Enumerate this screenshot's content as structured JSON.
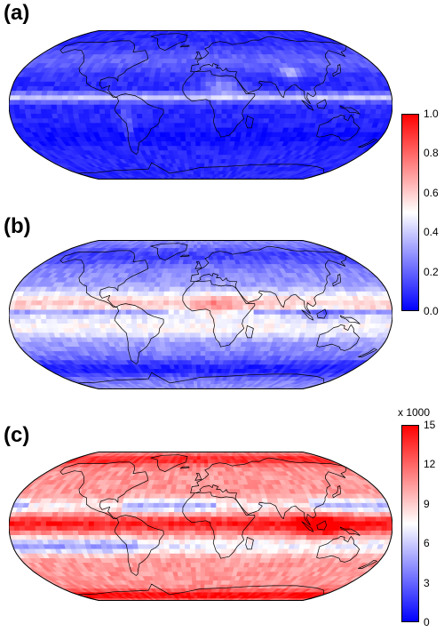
{
  "panels": [
    {
      "id": "a",
      "label": "(a)",
      "colorbar": "top"
    },
    {
      "id": "b",
      "label": "(b)",
      "colorbar": "top"
    },
    {
      "id": "c",
      "label": "(c)",
      "colorbar": "bottom"
    }
  ],
  "colorbar_top": {
    "ticks": [
      "1.0",
      "0.8",
      "0.6",
      "0.4",
      "0.2",
      "0.0"
    ],
    "min": 0.0,
    "max": 1.0,
    "colors": [
      "#0000ff",
      "#ffffff",
      "#ff0000"
    ]
  },
  "colorbar_bottom": {
    "multiplier": "x 1000",
    "ticks": [
      "15",
      "12",
      "9",
      "6",
      "3",
      "0"
    ],
    "min": 0,
    "max": 15,
    "colors": [
      "#0000ff",
      "#ffffff",
      "#ff0000"
    ]
  },
  "map_style": {
    "projection": "robinson",
    "coastline_color": "#000000",
    "outline_color": "#000000"
  }
}
